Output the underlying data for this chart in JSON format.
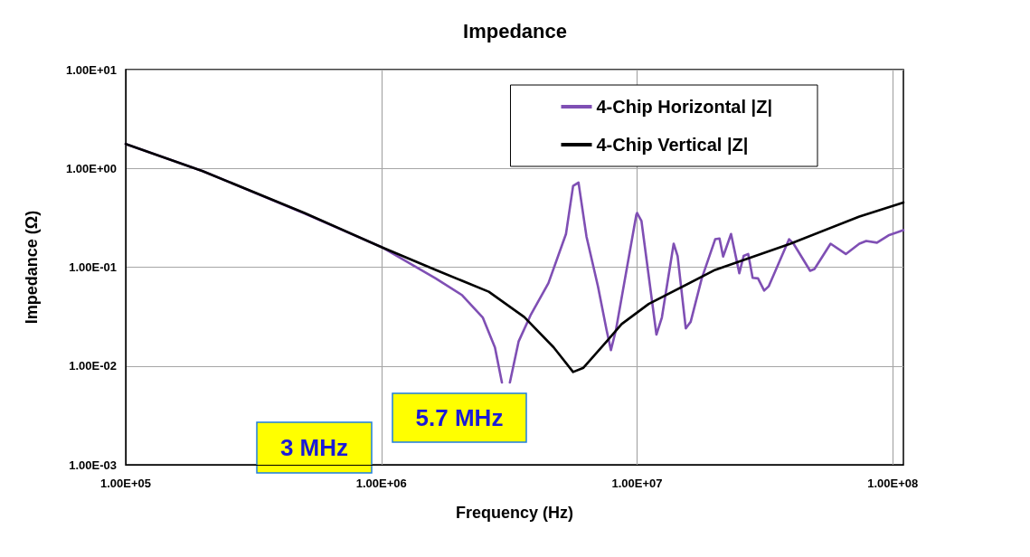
{
  "chart_data": {
    "type": "line",
    "title": "Impedance",
    "xlabel": "Frequency (Hz)",
    "ylabel": "Impedance (Ω)",
    "log": "xy",
    "grid": true,
    "legend": "top right",
    "marker": "none",
    "line_style": "solid",
    "xlim": [
      100000,
      110000000
    ],
    "xticks": [
      {
        "value": 100000,
        "label": "1.00E+05"
      },
      {
        "value": 1000000,
        "label": "1.00E+06"
      },
      {
        "value": 10000000,
        "label": "1.00E+07"
      },
      {
        "value": 100000000,
        "label": "1.00E+08"
      }
    ],
    "ylim": [
      0.001,
      10
    ],
    "yticks": [
      {
        "value": 0.001,
        "label": "1.00E-03"
      },
      {
        "value": 0.01,
        "label": "1.00E-02"
      },
      {
        "value": 0.1,
        "label": "1.00E-01"
      },
      {
        "value": 1,
        "label": "1.00E+00"
      },
      {
        "value": 10,
        "label": "1.00E+01"
      }
    ],
    "annotations": [
      "3 MHz",
      "5.7 MHz"
    ],
    "series": [
      {
        "name": "4-Chip Horizontal |Z|",
        "color": "#7f4fb4",
        "x": [
          100000,
          200000,
          500000,
          1000000,
          1630000,
          2070000,
          2490000,
          2780000,
          2960000,
          3100000,
          3180000,
          3440000,
          3830000,
          4500000,
          5270000,
          5620000,
          5900000,
          6340000,
          7030000,
          7600000,
          7900000,
          8260000,
          9930000,
          10000000,
          10400000,
          11900000,
          12500000,
          13900000,
          14400000,
          15500000,
          16200000,
          17900000,
          20200000,
          21000000,
          21700000,
          23300000,
          25100000,
          26100000,
          27200000,
          28300000,
          29700000,
          31400000,
          32700000,
          39300000,
          40900000,
          47500000,
          49400000,
          57100000,
          65500000,
          74000000,
          78700000,
          86700000,
          96200000,
          110000000
        ],
        "values": [
          1.77,
          0.94,
          0.35,
          0.16,
          0.077,
          0.052,
          0.031,
          0.0154,
          0.0068,
          null,
          0.0068,
          0.0177,
          0.0326,
          0.069,
          0.217,
          0.665,
          0.72,
          0.204,
          0.064,
          0.023,
          0.0145,
          0.023,
          0.34,
          0.354,
          0.294,
          0.0208,
          0.031,
          0.173,
          0.13,
          0.024,
          0.028,
          0.077,
          0.192,
          0.195,
          0.128,
          0.217,
          0.087,
          0.13,
          0.136,
          0.078,
          0.077,
          0.058,
          0.064,
          0.192,
          0.173,
          0.092,
          0.096,
          0.173,
          0.136,
          0.173,
          0.184,
          0.177,
          0.21,
          0.237
        ]
      },
      {
        "name": "4-Chip Vertical |Z|",
        "color": "#000000",
        "x": [
          100000,
          200000,
          500000,
          1000000,
          1630000,
          2630000,
          3620000,
          4720000,
          5620000,
          6170000,
          7600000,
          8700000,
          11100000,
          20200000,
          39800000,
          74000000,
          110000000
        ],
        "values": [
          1.77,
          0.94,
          0.354,
          0.16,
          0.094,
          0.0565,
          0.0313,
          0.0154,
          0.0087,
          0.0096,
          0.0177,
          0.0266,
          0.0425,
          0.094,
          0.173,
          0.326,
          0.452
        ]
      }
    ]
  }
}
